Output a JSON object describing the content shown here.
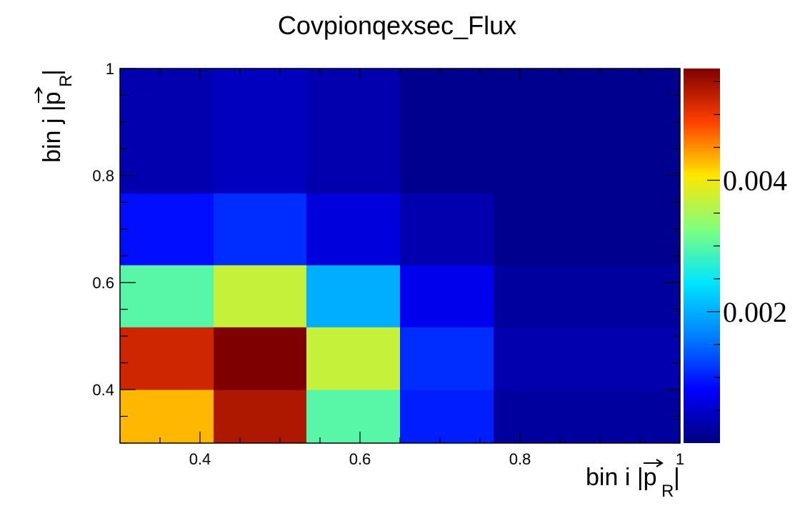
{
  "chart_data": {
    "type": "heatmap",
    "title": "Covpionqexsec_Flux",
    "xlabel": {
      "prefix": "bin i |",
      "symbol": "p",
      "subscript": "R",
      "suffix": "|"
    },
    "ylabel": {
      "prefix": "bin j |",
      "symbol": "p",
      "subscript": "R",
      "suffix": "|"
    },
    "xlim": [
      0.3,
      1.0
    ],
    "ylim": [
      0.3,
      1.0
    ],
    "x_edges": [
      0.3,
      0.417,
      0.533,
      0.65,
      0.767,
      1.0
    ],
    "y_edges": [
      0.3,
      0.4,
      0.517,
      0.633,
      0.767,
      1.0
    ],
    "x_ticks": [
      {
        "value": 0.4,
        "label": "0.4"
      },
      {
        "value": 0.6,
        "label": "0.6"
      },
      {
        "value": 0.8,
        "label": "0.8"
      },
      {
        "value": 1.0,
        "label": "1"
      }
    ],
    "y_ticks": [
      {
        "value": 0.4,
        "label": "0.4"
      },
      {
        "value": 0.6,
        "label": "0.6"
      },
      {
        "value": 0.8,
        "label": "0.8"
      },
      {
        "value": 1.0,
        "label": "1"
      }
    ],
    "z_range": [
      0,
      0.0057
    ],
    "colorbar_ticks": [
      {
        "value": 0.002,
        "label": "0.002"
      },
      {
        "value": 0.004,
        "label": "0.004"
      }
    ],
    "colormap": [
      "#00007f",
      "#0000ff",
      "#0080ff",
      "#00e5ff",
      "#80ff7f",
      "#ffe600",
      "#ff4000",
      "#7f0000"
    ],
    "values": [
      [
        0.0043,
        0.0054,
        0.003,
        0.001,
        0.0002
      ],
      [
        0.0052,
        0.0057,
        0.0037,
        0.0011,
        0.0003
      ],
      [
        0.003,
        0.0037,
        0.002,
        0.0007,
        0.0002
      ],
      [
        0.0009,
        0.0011,
        0.0006,
        0.0003,
        0.0001
      ],
      [
        0.0003,
        0.0004,
        0.0003,
        0.0001,
        0.0001
      ]
    ],
    "grid": false,
    "legend": "colorbar-right"
  }
}
